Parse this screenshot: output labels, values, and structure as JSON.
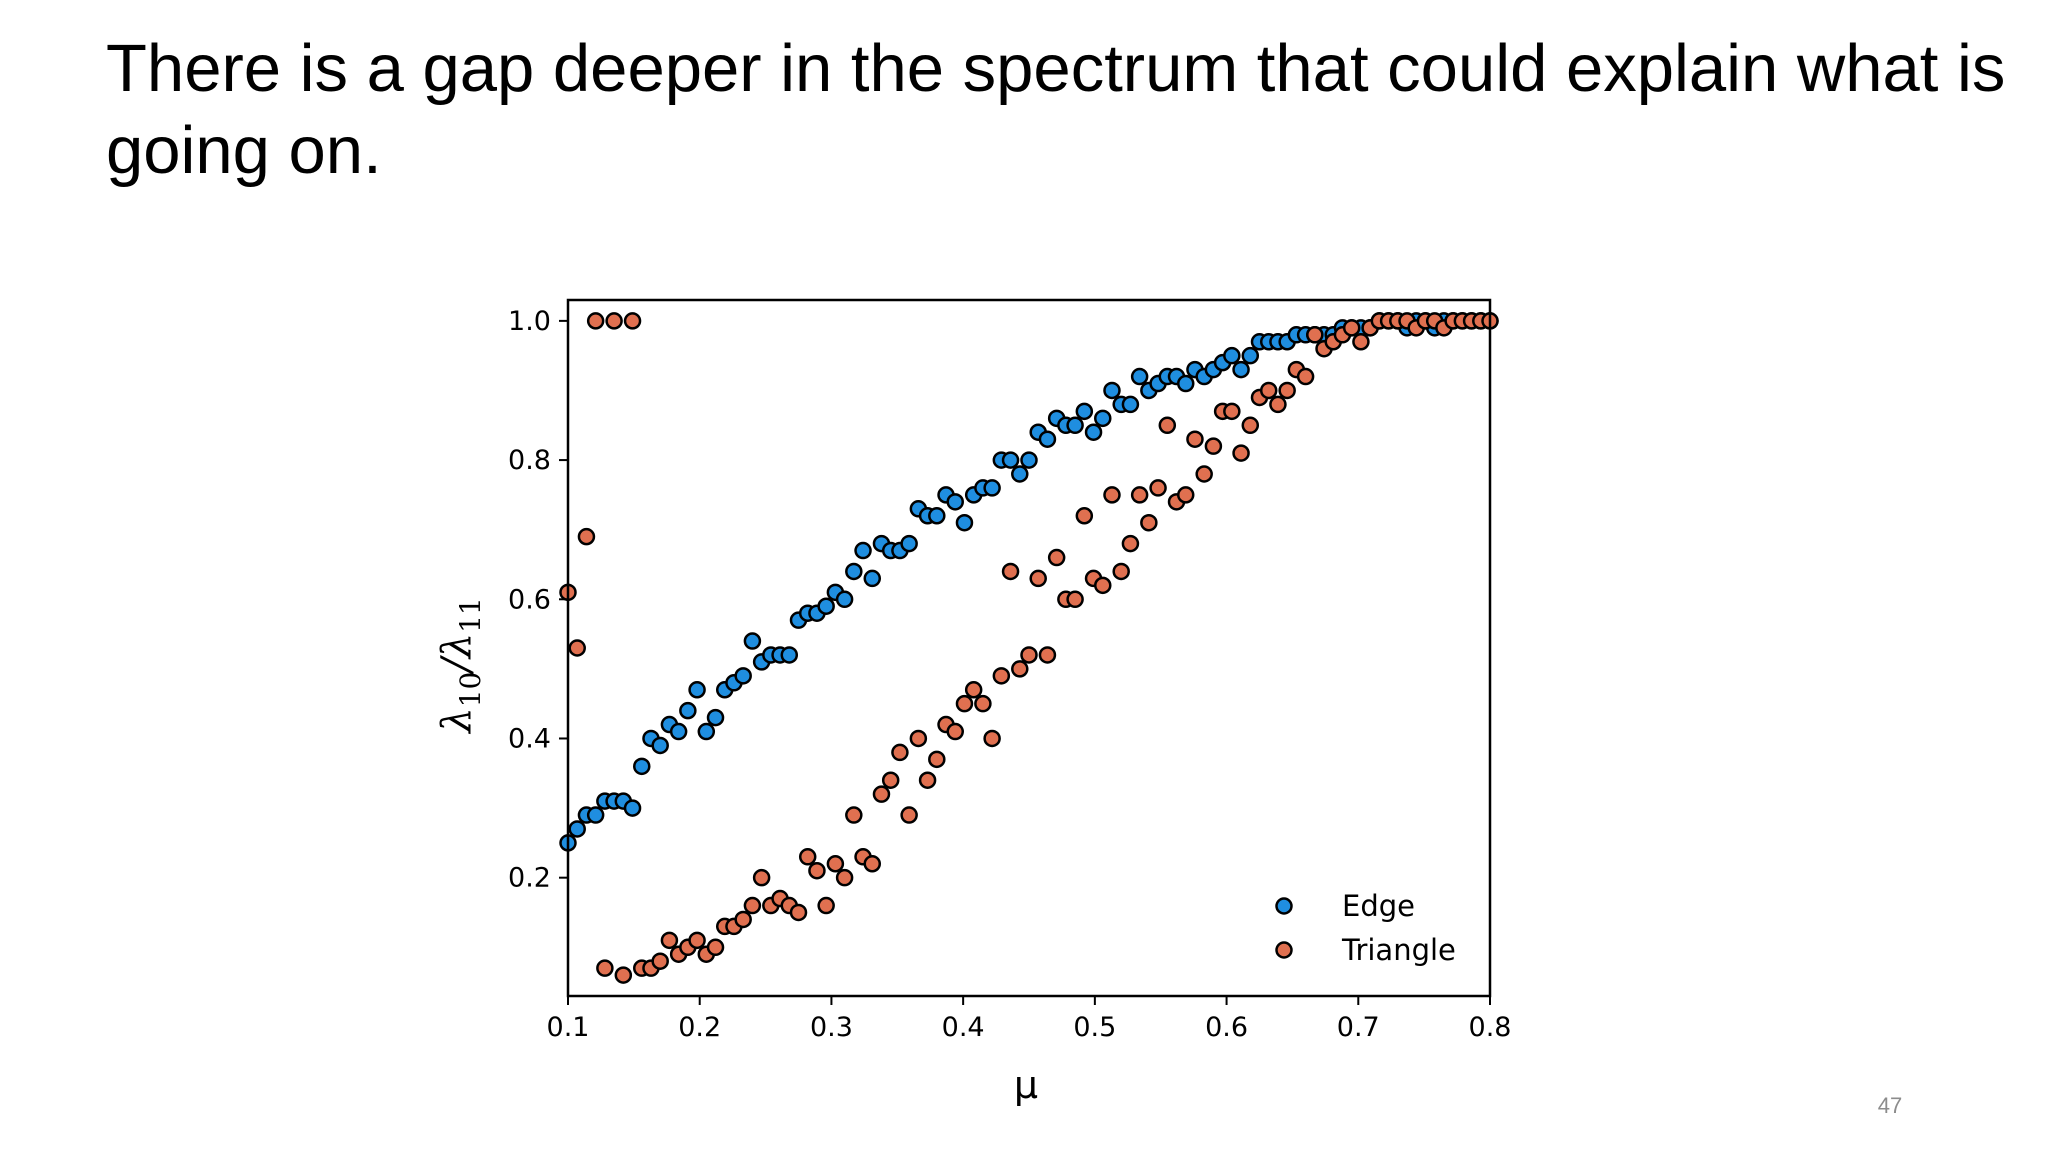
{
  "slide": {
    "title": "There is a gap deeper in the spectrum that could explain what is going on.",
    "page_number": "47"
  },
  "chart_data": {
    "type": "scatter",
    "title": "",
    "xlabel": "μ",
    "ylabel_base": "λ",
    "ylabel_sub1": "10",
    "ylabel_mid": "/λ",
    "ylabel_sub2": "11",
    "xlim": [
      0.1,
      0.8
    ],
    "ylim": [
      0.03,
      1.03
    ],
    "x_ticks": [
      0.1,
      0.2,
      0.3,
      0.4,
      0.5,
      0.6,
      0.7,
      0.8
    ],
    "x_tick_labels": [
      "0.1",
      "0.2",
      "0.3",
      "0.4",
      "0.5",
      "0.6",
      "0.7",
      "0.8"
    ],
    "y_ticks": [
      0.2,
      0.4,
      0.6,
      0.8,
      1.0
    ],
    "y_tick_labels": [
      "0.2",
      "0.4",
      "0.6",
      "0.8",
      "1.0"
    ],
    "grid": false,
    "legend": "bottom-right",
    "series": [
      {
        "name": "Edge",
        "color": "#1f8ee0",
        "x": [
          0.1,
          0.107,
          0.114,
          0.121,
          0.128,
          0.135,
          0.142,
          0.149,
          0.156,
          0.163,
          0.17,
          0.177,
          0.184,
          0.191,
          0.198,
          0.205,
          0.212,
          0.219,
          0.226,
          0.233,
          0.24,
          0.247,
          0.254,
          0.261,
          0.268,
          0.275,
          0.282,
          0.289,
          0.296,
          0.303,
          0.31,
          0.317,
          0.324,
          0.331,
          0.338,
          0.345,
          0.352,
          0.359,
          0.366,
          0.373,
          0.38,
          0.387,
          0.394,
          0.401,
          0.408,
          0.415,
          0.422,
          0.429,
          0.436,
          0.443,
          0.45,
          0.457,
          0.464,
          0.471,
          0.478,
          0.485,
          0.492,
          0.499,
          0.506,
          0.513,
          0.52,
          0.527,
          0.534,
          0.541,
          0.548,
          0.555,
          0.562,
          0.569,
          0.576,
          0.583,
          0.59,
          0.597,
          0.604,
          0.611,
          0.618,
          0.625,
          0.632,
          0.639,
          0.646,
          0.653,
          0.66,
          0.667,
          0.674,
          0.681,
          0.688,
          0.695,
          0.702,
          0.709,
          0.716,
          0.723,
          0.73,
          0.737,
          0.744,
          0.751,
          0.758,
          0.765,
          0.772,
          0.779,
          0.786,
          0.793,
          0.8
        ],
        "y": [
          0.25,
          0.27,
          0.29,
          0.29,
          0.31,
          0.31,
          0.31,
          0.3,
          0.36,
          0.4,
          0.39,
          0.42,
          0.41,
          0.44,
          0.47,
          0.41,
          0.43,
          0.47,
          0.48,
          0.49,
          0.54,
          0.51,
          0.52,
          0.52,
          0.52,
          0.57,
          0.58,
          0.58,
          0.59,
          0.61,
          0.6,
          0.64,
          0.67,
          0.63,
          0.68,
          0.67,
          0.67,
          0.68,
          0.73,
          0.72,
          0.72,
          0.75,
          0.74,
          0.71,
          0.75,
          0.76,
          0.76,
          0.8,
          0.8,
          0.78,
          0.8,
          0.84,
          0.83,
          0.86,
          0.85,
          0.85,
          0.87,
          0.84,
          0.86,
          0.9,
          0.88,
          0.88,
          0.92,
          0.9,
          0.91,
          0.92,
          0.92,
          0.91,
          0.93,
          0.92,
          0.93,
          0.94,
          0.95,
          0.93,
          0.95,
          0.97,
          0.97,
          0.97,
          0.97,
          0.98,
          0.98,
          0.98,
          0.98,
          0.98,
          0.99,
          0.99,
          0.99,
          0.99,
          1.0,
          1.0,
          1.0,
          0.99,
          1.0,
          1.0,
          0.99,
          1.0,
          1.0,
          1.0,
          1.0,
          1.0,
          1.0
        ]
      },
      {
        "name": "Triangle",
        "color": "#e07050",
        "x": [
          0.1,
          0.107,
          0.114,
          0.121,
          0.128,
          0.135,
          0.142,
          0.149,
          0.156,
          0.163,
          0.17,
          0.177,
          0.184,
          0.191,
          0.198,
          0.205,
          0.212,
          0.219,
          0.226,
          0.233,
          0.24,
          0.247,
          0.254,
          0.261,
          0.268,
          0.275,
          0.282,
          0.289,
          0.296,
          0.303,
          0.31,
          0.317,
          0.324,
          0.331,
          0.338,
          0.345,
          0.352,
          0.359,
          0.366,
          0.373,
          0.38,
          0.387,
          0.394,
          0.401,
          0.408,
          0.415,
          0.422,
          0.429,
          0.436,
          0.443,
          0.45,
          0.457,
          0.464,
          0.471,
          0.478,
          0.485,
          0.492,
          0.499,
          0.506,
          0.513,
          0.52,
          0.527,
          0.534,
          0.541,
          0.548,
          0.555,
          0.562,
          0.569,
          0.576,
          0.583,
          0.59,
          0.597,
          0.604,
          0.611,
          0.618,
          0.625,
          0.632,
          0.639,
          0.646,
          0.653,
          0.66,
          0.667,
          0.674,
          0.681,
          0.688,
          0.695,
          0.702,
          0.709,
          0.716,
          0.723,
          0.73,
          0.737,
          0.744,
          0.751,
          0.758,
          0.765,
          0.772,
          0.779,
          0.786,
          0.793,
          0.8
        ],
        "y": [
          0.61,
          0.53,
          0.69,
          1.0,
          0.07,
          1.0,
          0.06,
          1.0,
          0.07,
          0.07,
          0.08,
          0.11,
          0.09,
          0.1,
          0.11,
          0.09,
          0.1,
          0.13,
          0.13,
          0.14,
          0.16,
          0.2,
          0.16,
          0.17,
          0.16,
          0.15,
          0.23,
          0.21,
          0.16,
          0.22,
          0.2,
          0.29,
          0.23,
          0.22,
          0.32,
          0.34,
          0.38,
          0.29,
          0.4,
          0.34,
          0.37,
          0.42,
          0.41,
          0.45,
          0.47,
          0.45,
          0.4,
          0.49,
          0.64,
          0.5,
          0.52,
          0.63,
          0.52,
          0.66,
          0.6,
          0.6,
          0.72,
          0.63,
          0.62,
          0.75,
          0.64,
          0.68,
          0.75,
          0.71,
          0.76,
          0.85,
          0.74,
          0.75,
          0.83,
          0.78,
          0.82,
          0.87,
          0.87,
          0.81,
          0.85,
          0.89,
          0.9,
          0.88,
          0.9,
          0.93,
          0.92,
          0.98,
          0.96,
          0.97,
          0.98,
          0.99,
          0.97,
          0.99,
          1.0,
          1.0,
          1.0,
          1.0,
          0.99,
          1.0,
          1.0,
          0.99,
          1.0,
          1.0,
          1.0,
          1.0,
          1.0
        ]
      }
    ]
  }
}
